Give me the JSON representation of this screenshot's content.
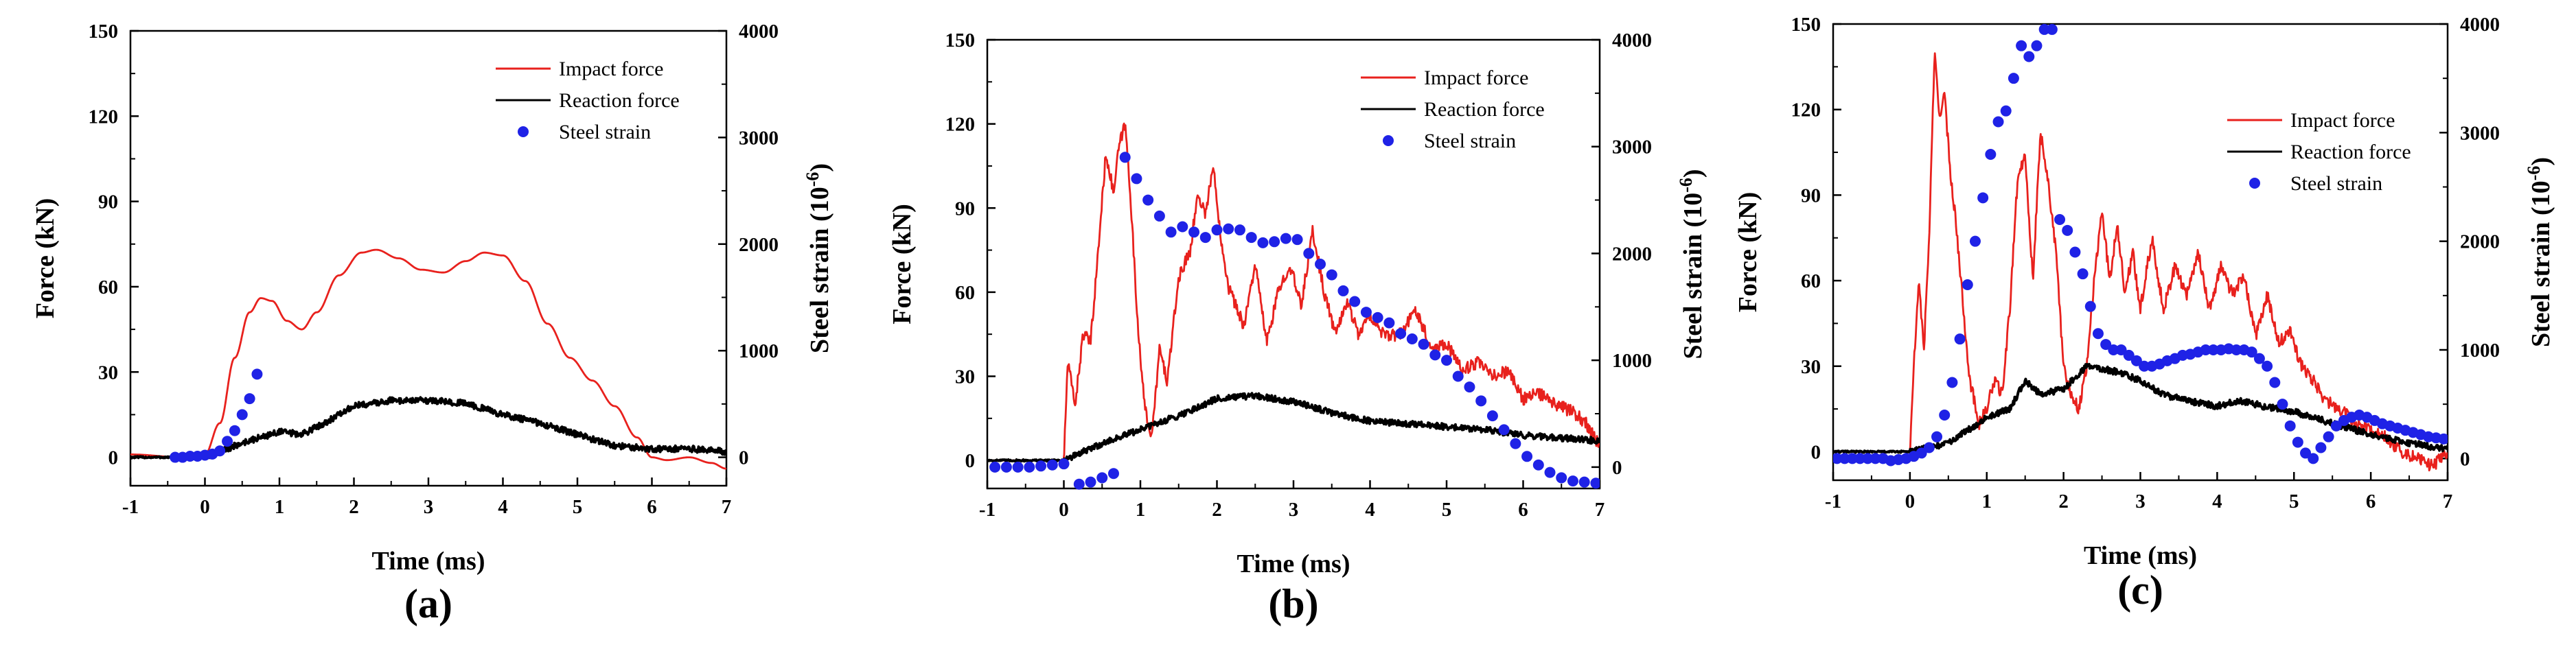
{
  "figure": {
    "colors": {
      "impact": "#e8211d",
      "reaction": "#000000",
      "strain": "#1f22e6"
    }
  },
  "chart_data": [
    {
      "type": "line",
      "panel_label": "(a)",
      "xlabel": "Time (ms)",
      "ylabel": "Force (kN)",
      "ylabel_right": "Steel strain (10",
      "ylabel_right_sup": "-6",
      "ylabel_right_suffix": ")",
      "xlim": [
        -1,
        7
      ],
      "ylim": [
        -10,
        150
      ],
      "ylim_right": [
        -266.7,
        4000
      ],
      "xticks": [
        "-1",
        "0",
        "1",
        "2",
        "3",
        "4",
        "5",
        "6",
        "7"
      ],
      "yticks": [
        "0",
        "30",
        "60",
        "90",
        "120",
        "150"
      ],
      "yticks_right": [
        "0",
        "1000",
        "2000",
        "3000",
        "4000"
      ],
      "legend": [
        "Impact force",
        "Reaction force",
        "Steel strain"
      ],
      "legend_position": "top-right",
      "series": [
        {
          "name": "Impact force",
          "axis": "left",
          "style": "smooth",
          "x": [
            -1,
            -0.3,
            0,
            0.2,
            0.4,
            0.6,
            0.75,
            0.9,
            1.1,
            1.3,
            1.5,
            1.8,
            2.1,
            2.3,
            2.6,
            2.9,
            3.2,
            3.5,
            3.75,
            4.0,
            4.3,
            4.6,
            4.9,
            5.2,
            5.5,
            5.8,
            6.0,
            6.2,
            6.5,
            6.8,
            7.0
          ],
          "y": [
            1,
            0,
            1,
            12,
            35,
            51,
            56,
            55,
            48,
            45,
            51,
            64,
            72,
            73,
            70,
            66,
            65,
            69,
            72,
            71,
            62,
            47,
            35,
            27,
            18,
            7,
            0,
            -1,
            0,
            -2,
            -4
          ]
        },
        {
          "name": "Reaction force",
          "axis": "left",
          "style": "noisy",
          "x": [
            -1,
            0,
            0.5,
            1,
            1.3,
            1.6,
            2,
            2.5,
            3,
            3.5,
            4,
            4.5,
            5,
            5.5,
            6,
            6.5,
            7
          ],
          "y": [
            0,
            0,
            5,
            9,
            8,
            12,
            18,
            20,
            20,
            19,
            15,
            12,
            8,
            4,
            3,
            3,
            2
          ]
        },
        {
          "name": "Steel strain",
          "axis": "right",
          "style": "dots",
          "x": [
            -0.4,
            -0.3,
            -0.2,
            -0.1,
            0.0,
            0.1,
            0.2,
            0.3,
            0.4,
            0.5,
            0.6,
            0.7
          ],
          "y": [
            0,
            0,
            10,
            10,
            20,
            30,
            60,
            150,
            250,
            400,
            550,
            780
          ]
        }
      ]
    },
    {
      "type": "line",
      "panel_label": "(b)",
      "xlabel": "Time (ms)",
      "ylabel": "Force (kN)",
      "ylabel_right": "Steel strain (10",
      "ylabel_right_sup": "-6",
      "ylabel_right_suffix": ")",
      "xlim": [
        -1,
        7
      ],
      "ylim": [
        -10,
        150
      ],
      "ylim_right": [
        -200,
        4000
      ],
      "xticks": [
        "-1",
        "0",
        "1",
        "2",
        "3",
        "4",
        "5",
        "6",
        "7"
      ],
      "yticks": [
        "0",
        "30",
        "60",
        "90",
        "120",
        "150"
      ],
      "yticks_right": [
        "0",
        "1000",
        "2000",
        "3000",
        "4000"
      ],
      "legend": [
        "Impact force",
        "Reaction force",
        "Steel strain"
      ],
      "legend_position": "top-right",
      "series": [
        {
          "name": "Impact force",
          "axis": "left",
          "style": "jagged",
          "x": [
            -1,
            -0.5,
            0,
            0.05,
            0.15,
            0.25,
            0.35,
            0.45,
            0.55,
            0.65,
            0.72,
            0.8,
            0.87,
            0.95,
            1.05,
            1.15,
            1.25,
            1.35,
            1.5,
            1.65,
            1.75,
            1.85,
            1.95,
            2.05,
            2.15,
            2.25,
            2.35,
            2.5,
            2.65,
            2.8,
            2.95,
            3.1,
            3.25,
            3.4,
            3.55,
            3.7,
            3.85,
            4.0,
            4.2,
            4.4,
            4.6,
            4.8,
            5.0,
            5.2,
            5.4,
            5.6,
            5.8,
            6.0,
            6.2,
            6.4,
            6.6,
            6.8,
            7.0
          ],
          "y": [
            0,
            0,
            0,
            35,
            20,
            45,
            42,
            75,
            110,
            95,
            112,
            120,
            95,
            55,
            20,
            8,
            40,
            28,
            65,
            75,
            95,
            88,
            105,
            80,
            62,
            55,
            48,
            70,
            42,
            60,
            70,
            55,
            82,
            60,
            45,
            57,
            45,
            52,
            44,
            45,
            54,
            40,
            42,
            32,
            35,
            30,
            32,
            22,
            24,
            20,
            18,
            14,
            5
          ]
        },
        {
          "name": "Reaction force",
          "axis": "left",
          "style": "noisy",
          "x": [
            -1,
            0,
            0.5,
            1,
            1.5,
            2,
            2.5,
            3,
            3.5,
            4,
            4.5,
            5,
            5.5,
            6,
            6.5,
            7
          ],
          "y": [
            0,
            0,
            6,
            11,
            16,
            22,
            23,
            21,
            17,
            14,
            13,
            12,
            11,
            9,
            8,
            7
          ]
        },
        {
          "name": "Steel strain",
          "axis": "right",
          "style": "dots",
          "x": [
            -0.9,
            -0.75,
            -0.6,
            -0.45,
            -0.3,
            -0.15,
            0.0,
            0.2,
            0.35,
            0.5,
            0.65,
            0.8,
            0.95,
            1.1,
            1.25,
            1.4,
            1.55,
            1.7,
            1.85,
            2.0,
            2.15,
            2.3,
            2.45,
            2.6,
            2.75,
            2.9,
            3.05,
            3.2,
            3.35,
            3.5,
            3.65,
            3.8,
            3.95,
            4.1,
            4.25,
            4.4,
            4.55,
            4.7,
            4.85,
            5.0,
            5.15,
            5.3,
            5.45,
            5.6,
            5.75,
            5.9,
            6.05,
            6.2,
            6.35,
            6.5,
            6.65,
            6.8,
            6.95
          ],
          "y": [
            0,
            0,
            0,
            0,
            10,
            20,
            30,
            -160,
            -140,
            -100,
            -60,
            2900,
            2700,
            2500,
            2350,
            2200,
            2250,
            2200,
            2150,
            2220,
            2230,
            2220,
            2150,
            2100,
            2110,
            2140,
            2130,
            2000,
            1900,
            1800,
            1650,
            1550,
            1450,
            1400,
            1350,
            1250,
            1200,
            1150,
            1050,
            1000,
            850,
            750,
            620,
            480,
            350,
            220,
            100,
            20,
            -50,
            -100,
            -130,
            -140,
            -150
          ]
        }
      ]
    },
    {
      "type": "line",
      "panel_label": "(c)",
      "xlabel": "Time (ms)",
      "ylabel": "Force (kN)",
      "ylabel_right": "Steel strain (10",
      "ylabel_right_sup": "-6",
      "ylabel_right_suffix": ")",
      "xlim": [
        -1,
        7
      ],
      "ylim": [
        -10,
        150
      ],
      "ylim_right": [
        -200,
        4000
      ],
      "xticks": [
        "-1",
        "0",
        "1",
        "2",
        "3",
        "4",
        "5",
        "6",
        "7"
      ],
      "yticks": [
        "0",
        "30",
        "60",
        "90",
        "120",
        "150"
      ],
      "yticks_right": [
        "0",
        "1000",
        "2000",
        "3000",
        "4000"
      ],
      "legend": [
        "Impact force",
        "Reaction force",
        "Steel strain"
      ],
      "legend_position": "top-right",
      "series": [
        {
          "name": "Impact force",
          "axis": "left",
          "style": "jagged",
          "x": [
            -1,
            -0.5,
            0,
            0.05,
            0.12,
            0.18,
            0.25,
            0.32,
            0.38,
            0.45,
            0.52,
            0.6,
            0.68,
            0.78,
            0.9,
            1.0,
            1.1,
            1.2,
            1.3,
            1.4,
            1.5,
            1.6,
            1.7,
            1.8,
            1.9,
            2.0,
            2.1,
            2.2,
            2.3,
            2.4,
            2.5,
            2.6,
            2.7,
            2.8,
            2.9,
            3.0,
            3.15,
            3.3,
            3.45,
            3.6,
            3.75,
            3.9,
            4.05,
            4.2,
            4.35,
            4.5,
            4.65,
            4.8,
            4.95,
            5.1,
            5.25,
            5.4,
            5.6,
            5.8,
            6.0,
            6.2,
            6.4,
            6.6,
            6.8,
            7.0
          ],
          "y": [
            0,
            0,
            0,
            30,
            60,
            35,
            75,
            140,
            118,
            125,
            100,
            80,
            55,
            25,
            10,
            15,
            25,
            20,
            50,
            95,
            105,
            60,
            112,
            95,
            70,
            30,
            20,
            15,
            30,
            60,
            85,
            60,
            80,
            55,
            70,
            50,
            75,
            50,
            65,
            55,
            70,
            50,
            65,
            55,
            62,
            40,
            55,
            38,
            42,
            30,
            25,
            18,
            15,
            10,
            8,
            5,
            0,
            -2,
            -5,
            0
          ]
        },
        {
          "name": "Reaction force",
          "axis": "left",
          "style": "noisy",
          "x": [
            -1,
            0,
            0.5,
            1,
            1.3,
            1.5,
            1.7,
            2,
            2.3,
            2.7,
            3,
            3.3,
            3.6,
            4,
            4.3,
            4.6,
            5,
            5.5,
            6,
            6.5,
            7
          ],
          "y": [
            0,
            0,
            3,
            12,
            15,
            25,
            20,
            22,
            30,
            28,
            25,
            20,
            18,
            16,
            18,
            16,
            14,
            10,
            6,
            3,
            1
          ]
        },
        {
          "name": "Steel strain",
          "axis": "right",
          "style": "dots",
          "x": [
            -0.95,
            -0.85,
            -0.75,
            -0.65,
            -0.55,
            -0.45,
            -0.35,
            -0.25,
            -0.15,
            -0.05,
            0.05,
            0.15,
            0.25,
            0.35,
            0.45,
            0.55,
            0.65,
            0.75,
            0.85,
            0.95,
            1.05,
            1.15,
            1.25,
            1.35,
            1.45,
            1.55,
            1.65,
            1.75,
            1.85,
            1.95,
            2.05,
            2.15,
            2.25,
            2.35,
            2.45,
            2.55,
            2.65,
            2.75,
            2.85,
            2.95,
            3.05,
            3.15,
            3.25,
            3.35,
            3.45,
            3.55,
            3.65,
            3.75,
            3.85,
            3.95,
            4.05,
            4.15,
            4.25,
            4.35,
            4.45,
            4.55,
            4.65,
            4.75,
            4.85,
            4.95,
            5.05,
            5.15,
            5.25,
            5.35,
            5.45,
            5.55,
            5.65,
            5.75,
            5.85,
            5.95,
            6.05,
            6.15,
            6.25,
            6.35,
            6.45,
            6.55,
            6.65,
            6.75,
            6.85,
            6.95
          ],
          "y": [
            0,
            0,
            0,
            0,
            0,
            0,
            0,
            -20,
            -10,
            0,
            20,
            50,
            100,
            200,
            400,
            700,
            1100,
            1600,
            2000,
            2400,
            2800,
            3100,
            3200,
            3500,
            3800,
            3700,
            3800,
            3950,
            3950,
            2200,
            2100,
            1900,
            1700,
            1400,
            1150,
            1050,
            1000,
            1000,
            950,
            900,
            850,
            850,
            870,
            900,
            920,
            950,
            960,
            980,
            1000,
            1000,
            1000,
            1010,
            1000,
            1000,
            980,
            920,
            850,
            700,
            500,
            300,
            150,
            50,
            0,
            100,
            200,
            300,
            350,
            380,
            400,
            380,
            350,
            320,
            300,
            280,
            260,
            240,
            220,
            200,
            190,
            180
          ]
        }
      ]
    }
  ]
}
